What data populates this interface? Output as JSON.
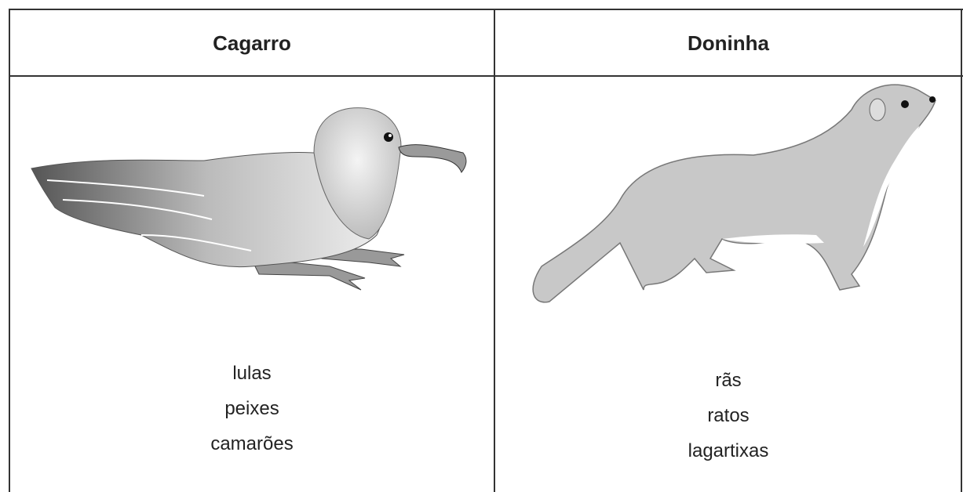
{
  "table": {
    "columns": [
      {
        "name": "Cagarro",
        "foods": [
          "lulas",
          "peixes",
          "camarões"
        ]
      },
      {
        "name": "Doninha",
        "foods": [
          "rãs",
          "ratos",
          "lagartixas"
        ]
      }
    ]
  }
}
